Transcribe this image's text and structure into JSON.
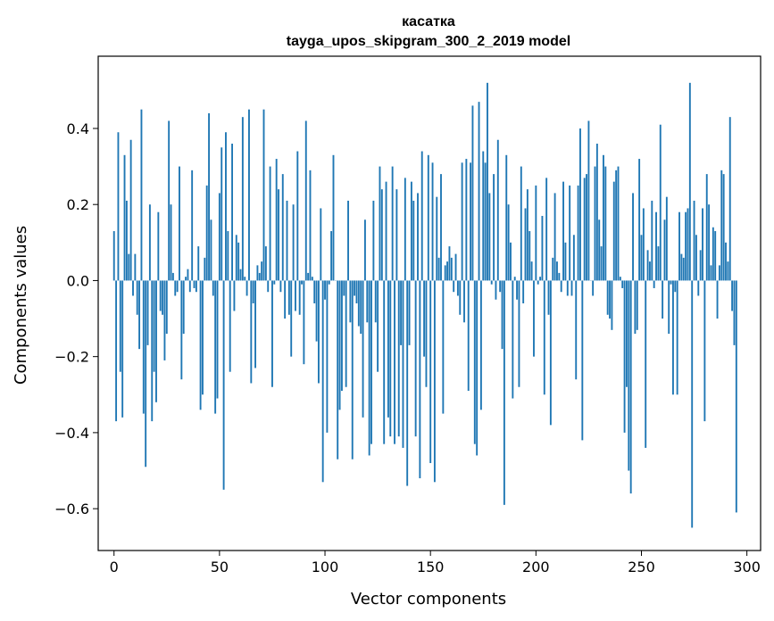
{
  "chart_data": {
    "type": "bar",
    "title": "касатка",
    "subtitle": "tayga_upos_skipgram_300_2_2019 model",
    "xlabel": "Vector components",
    "ylabel": "Components values",
    "xlim": [
      -7.5,
      306.5
    ],
    "ylim": [
      -0.71,
      0.59
    ],
    "xticks": [
      0,
      50,
      100,
      150,
      200,
      250,
      300
    ],
    "yticks": [
      -0.6,
      -0.4,
      -0.2,
      0.0,
      0.2,
      0.4
    ],
    "ytick_labels": [
      "−0.6",
      "−0.4",
      "−0.2",
      "0.0",
      "0.2",
      "0.4"
    ],
    "bar_color": "#1f77b4",
    "grid": false,
    "values": [
      0.13,
      -0.37,
      0.39,
      -0.24,
      -0.36,
      0.33,
      0.21,
      0.07,
      0.37,
      -0.04,
      0.07,
      -0.09,
      -0.18,
      0.45,
      -0.35,
      -0.49,
      -0.17,
      0.2,
      -0.37,
      -0.24,
      -0.32,
      0.18,
      -0.08,
      -0.09,
      -0.21,
      -0.14,
      0.42,
      0.2,
      0.02,
      -0.04,
      -0.03,
      0.3,
      -0.26,
      -0.14,
      0.01,
      0.03,
      -0.03,
      0.29,
      -0.02,
      -0.03,
      0.09,
      -0.34,
      -0.3,
      0.06,
      0.25,
      0.44,
      0.16,
      -0.04,
      -0.35,
      -0.31,
      0.23,
      0.35,
      -0.55,
      0.39,
      0.13,
      -0.24,
      0.36,
      -0.08,
      0.12,
      0.1,
      0.03,
      0.43,
      0.01,
      -0.04,
      0.45,
      -0.27,
      -0.06,
      -0.23,
      0.04,
      0.02,
      0.05,
      0.45,
      0.09,
      -0.03,
      0.3,
      -0.28,
      -0.01,
      0.32,
      0.24,
      -0.03,
      0.28,
      -0.1,
      0.21,
      -0.09,
      -0.2,
      0.2,
      -0.08,
      0.34,
      -0.09,
      -0.01,
      -0.22,
      0.42,
      0.02,
      0.29,
      0.01,
      -0.06,
      -0.16,
      -0.27,
      0.19,
      -0.53,
      -0.05,
      -0.4,
      -0.01,
      0.13,
      0.33,
      0.0,
      -0.47,
      -0.34,
      -0.29,
      -0.04,
      -0.28,
      0.21,
      -0.11,
      -0.47,
      -0.04,
      -0.06,
      -0.12,
      -0.14,
      -0.36,
      0.16,
      -0.11,
      -0.46,
      -0.43,
      0.21,
      -0.11,
      -0.24,
      0.3,
      0.24,
      -0.43,
      0.26,
      -0.36,
      -0.41,
      0.3,
      -0.43,
      0.24,
      -0.41,
      -0.17,
      -0.44,
      0.27,
      -0.54,
      -0.17,
      0.26,
      0.21,
      -0.41,
      0.23,
      -0.52,
      0.34,
      -0.2,
      -0.28,
      0.33,
      -0.48,
      0.31,
      -0.53,
      0.22,
      0.06,
      0.28,
      -0.35,
      0.04,
      0.05,
      0.09,
      0.06,
      -0.03,
      0.07,
      -0.04,
      -0.09,
      0.31,
      -0.11,
      0.32,
      -0.29,
      0.31,
      0.46,
      -0.43,
      -0.46,
      0.47,
      -0.34,
      0.34,
      0.31,
      0.52,
      0.23,
      -0.01,
      0.28,
      -0.05,
      0.37,
      -0.03,
      -0.18,
      -0.59,
      0.33,
      0.2,
      0.1,
      -0.31,
      0.01,
      -0.05,
      -0.28,
      0.3,
      -0.06,
      0.19,
      0.24,
      0.13,
      0.05,
      -0.2,
      0.25,
      -0.01,
      0.01,
      0.17,
      -0.3,
      0.27,
      -0.09,
      -0.38,
      0.06,
      0.23,
      0.05,
      0.02,
      -0.03,
      0.26,
      0.1,
      -0.04,
      0.25,
      -0.04,
      0.12,
      -0.26,
      0.25,
      0.4,
      -0.42,
      0.27,
      0.28,
      0.42,
      0.0,
      -0.04,
      0.3,
      0.36,
      0.16,
      0.09,
      0.33,
      0.3,
      -0.09,
      -0.1,
      -0.13,
      0.26,
      0.29,
      0.3,
      0.01,
      -0.02,
      -0.4,
      -0.28,
      -0.5,
      -0.56,
      0.23,
      -0.14,
      -0.13,
      0.32,
      0.12,
      0.19,
      -0.44,
      0.08,
      0.05,
      0.21,
      -0.02,
      0.18,
      0.09,
      0.41,
      -0.1,
      0.16,
      0.22,
      -0.14,
      -0.01,
      -0.3,
      -0.03,
      -0.3,
      0.18,
      0.07,
      0.06,
      0.18,
      0.19,
      0.52,
      -0.65,
      0.21,
      0.12,
      -0.04,
      0.08,
      0.19,
      -0.37,
      0.28,
      0.2,
      0.04,
      0.14,
      0.13,
      -0.1,
      0.04,
      0.29,
      0.28,
      0.1,
      0.05,
      0.43,
      -0.08,
      -0.17,
      -0.61
    ]
  }
}
